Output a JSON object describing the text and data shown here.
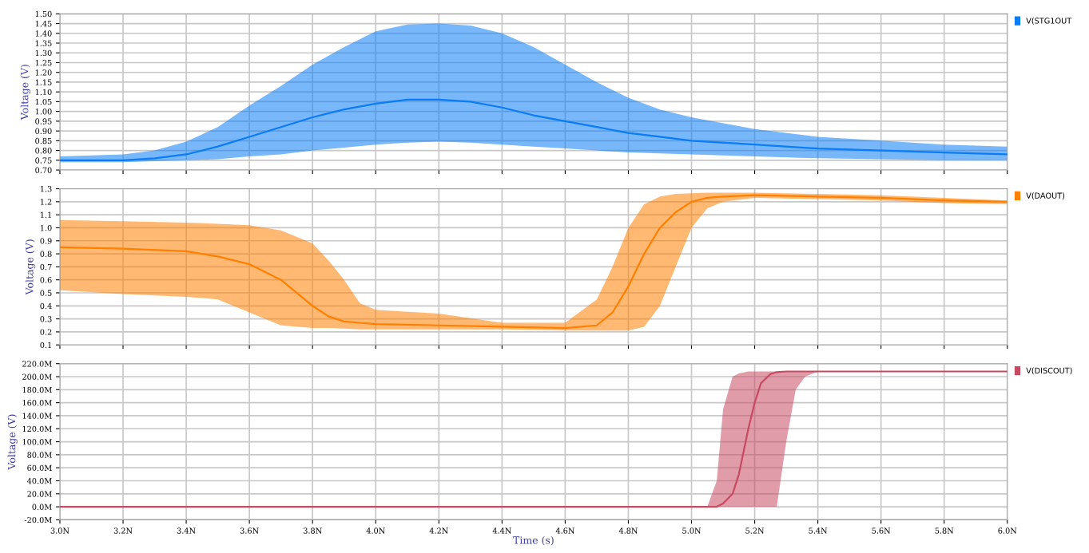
{
  "chart_data": [
    {
      "type": "line",
      "ylabel": "Voltage (V)",
      "xlim": [
        3.0,
        6.0
      ],
      "ylim": [
        0.7,
        1.5
      ],
      "tick_labels": "y",
      "grid": true,
      "legend": "top right",
      "yticks": [
        {
          "value": 0.7,
          "label": "0.70"
        },
        {
          "value": 0.75,
          "label": "0.75"
        },
        {
          "value": 0.8,
          "label": "0.80"
        },
        {
          "value": 0.85,
          "label": "0.85"
        },
        {
          "value": 0.9,
          "label": "0.90"
        },
        {
          "value": 0.95,
          "label": "0.95"
        },
        {
          "value": 1.0,
          "label": "1.00"
        },
        {
          "value": 1.05,
          "label": "1.05"
        },
        {
          "value": 1.1,
          "label": "1.10"
        },
        {
          "value": 1.15,
          "label": "1.15"
        },
        {
          "value": 1.2,
          "label": "1.20"
        },
        {
          "value": 1.25,
          "label": "1.25"
        },
        {
          "value": 1.3,
          "label": "1.30"
        },
        {
          "value": 1.35,
          "label": "1.35"
        },
        {
          "value": 1.4,
          "label": "1.40"
        },
        {
          "value": 1.45,
          "label": "1.45"
        },
        {
          "value": 1.5,
          "label": "1.50"
        }
      ],
      "series": [
        {
          "name": "V(STG1OUT",
          "color": "#0a7cf5",
          "x": [
            3.0,
            3.2,
            3.3,
            3.4,
            3.5,
            3.6,
            3.7,
            3.8,
            3.9,
            4.0,
            4.1,
            4.2,
            4.3,
            4.4,
            4.5,
            4.6,
            4.7,
            4.8,
            4.9,
            5.0,
            5.2,
            5.4,
            5.6,
            5.8,
            6.0
          ],
          "values": [
            0.75,
            0.75,
            0.76,
            0.78,
            0.82,
            0.87,
            0.92,
            0.97,
            1.01,
            1.04,
            1.06,
            1.06,
            1.05,
            1.02,
            0.98,
            0.95,
            0.92,
            0.89,
            0.87,
            0.85,
            0.83,
            0.81,
            0.8,
            0.79,
            0.78
          ],
          "lower": [
            0.74,
            0.74,
            0.745,
            0.75,
            0.755,
            0.77,
            0.78,
            0.8,
            0.815,
            0.83,
            0.84,
            0.845,
            0.84,
            0.83,
            0.82,
            0.81,
            0.8,
            0.79,
            0.785,
            0.78,
            0.77,
            0.76,
            0.755,
            0.75,
            0.75
          ],
          "upper": [
            0.77,
            0.78,
            0.8,
            0.845,
            0.92,
            1.03,
            1.13,
            1.24,
            1.33,
            1.41,
            1.445,
            1.45,
            1.44,
            1.4,
            1.33,
            1.24,
            1.15,
            1.07,
            1.01,
            0.97,
            0.91,
            0.87,
            0.85,
            0.83,
            0.82
          ]
        }
      ]
    },
    {
      "type": "line",
      "ylabel": "Voltage (V)",
      "xlim": [
        3.0,
        6.0
      ],
      "ylim": [
        0.1,
        1.3
      ],
      "tick_labels": "y",
      "grid": true,
      "legend": "top right",
      "yticks": [
        0.1,
        0.2,
        0.3,
        0.4,
        0.5,
        0.6,
        0.7,
        0.8,
        0.9,
        {
          "value": 1.0,
          "label": "1.0"
        },
        1.1,
        1.2,
        1.3
      ],
      "series": [
        {
          "name": "V(DAOUT)",
          "color": "#ff8000",
          "x": [
            3.0,
            3.2,
            3.4,
            3.5,
            3.6,
            3.7,
            3.8,
            3.85,
            3.9,
            3.95,
            4.0,
            4.2,
            4.4,
            4.6,
            4.7,
            4.75,
            4.8,
            4.85,
            4.9,
            4.95,
            5.0,
            5.05,
            5.1,
            5.2,
            5.4,
            5.6,
            5.8,
            6.0
          ],
          "values": [
            0.85,
            0.84,
            0.82,
            0.78,
            0.72,
            0.6,
            0.4,
            0.32,
            0.28,
            0.27,
            0.26,
            0.25,
            0.24,
            0.23,
            0.25,
            0.35,
            0.55,
            0.8,
            1.0,
            1.12,
            1.2,
            1.23,
            1.24,
            1.25,
            1.24,
            1.23,
            1.21,
            1.2
          ],
          "lower": [
            0.52,
            0.49,
            0.47,
            0.45,
            0.35,
            0.25,
            0.23,
            0.23,
            0.225,
            0.22,
            0.22,
            0.22,
            0.22,
            0.21,
            0.21,
            0.21,
            0.21,
            0.24,
            0.4,
            0.7,
            1.0,
            1.15,
            1.2,
            1.23,
            1.22,
            1.21,
            1.19,
            1.18
          ],
          "upper": [
            1.06,
            1.05,
            1.04,
            1.03,
            1.02,
            0.98,
            0.88,
            0.75,
            0.6,
            0.42,
            0.37,
            0.34,
            0.27,
            0.27,
            0.45,
            0.7,
            1.0,
            1.18,
            1.24,
            1.26,
            1.265,
            1.27,
            1.27,
            1.27,
            1.26,
            1.25,
            1.23,
            1.21
          ]
        }
      ]
    },
    {
      "type": "line",
      "ylabel": "Voltage (V)",
      "xlabel": "Time (s)",
      "xlim": [
        3.0,
        6.0
      ],
      "ylim": [
        -20,
        220
      ],
      "grid": true,
      "legend": "top right",
      "xticks": [
        {
          "value": 3.0,
          "label": "3.0N"
        },
        {
          "value": 3.2,
          "label": "3.2N"
        },
        {
          "value": 3.4,
          "label": "3.4N"
        },
        {
          "value": 3.6,
          "label": "3.6N"
        },
        {
          "value": 3.8,
          "label": "3.8N"
        },
        {
          "value": 4.0,
          "label": "4.0N"
        },
        {
          "value": 4.2,
          "label": "4.2N"
        },
        {
          "value": 4.4,
          "label": "4.4N"
        },
        {
          "value": 4.6,
          "label": "4.6N"
        },
        {
          "value": 4.8,
          "label": "4.8N"
        },
        {
          "value": 5.0,
          "label": "5.0N"
        },
        {
          "value": 5.2,
          "label": "5.2N"
        },
        {
          "value": 5.4,
          "label": "5.4N"
        },
        {
          "value": 5.6,
          "label": "5.6N"
        },
        {
          "value": 5.8,
          "label": "5.8N"
        },
        {
          "value": 6.0,
          "label": "6.0N"
        }
      ],
      "yticks": [
        {
          "value": -20,
          "label": "-20.0M"
        },
        {
          "value": 0,
          "label": "0.0M"
        },
        {
          "value": 20,
          "label": "20.0M"
        },
        {
          "value": 40,
          "label": "40.0M"
        },
        {
          "value": 60,
          "label": "60.0M"
        },
        {
          "value": 80,
          "label": "80.0M"
        },
        {
          "value": 100,
          "label": "100.0M"
        },
        {
          "value": 120,
          "label": "120.0M"
        },
        {
          "value": 140,
          "label": "140.0M"
        },
        {
          "value": 160,
          "label": "160.0M"
        },
        {
          "value": 180,
          "label": "180.0M"
        },
        {
          "value": 200,
          "label": "200.0M"
        },
        {
          "value": 220,
          "label": "220.0M"
        }
      ],
      "series": [
        {
          "name": "V(DISCOUT)",
          "color": "#c84a62",
          "x": [
            3.0,
            4.0,
            5.0,
            5.05,
            5.08,
            5.1,
            5.13,
            5.15,
            5.18,
            5.2,
            5.22,
            5.25,
            5.27,
            5.3,
            5.33,
            5.36,
            5.4,
            5.6,
            6.0
          ],
          "values": [
            0,
            0,
            0,
            0,
            0,
            5,
            20,
            50,
            120,
            160,
            190,
            204,
            207,
            208,
            208,
            208,
            208,
            208,
            208
          ],
          "lower": [
            0,
            0,
            0,
            0,
            0,
            0,
            0,
            0,
            0,
            0,
            0,
            0,
            0,
            100,
            180,
            200,
            208,
            208,
            208
          ],
          "upper": [
            0,
            0,
            0,
            0,
            40,
            150,
            200,
            205,
            208,
            208,
            208,
            208,
            208,
            208,
            208,
            208,
            208,
            208,
            208
          ]
        }
      ]
    }
  ]
}
